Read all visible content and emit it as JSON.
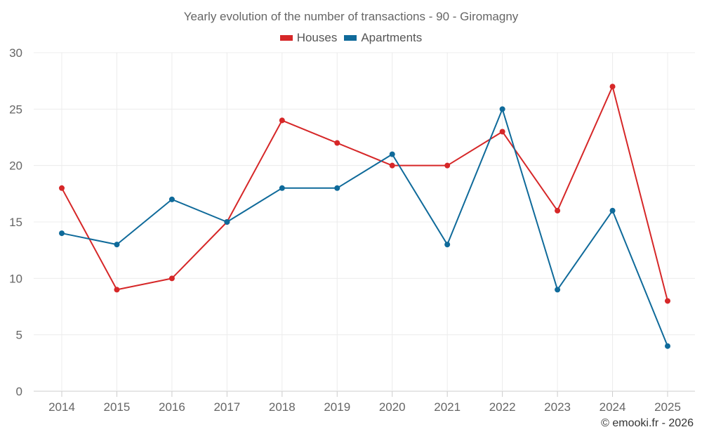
{
  "chart_data": {
    "type": "line",
    "title": "Yearly evolution of the number of transactions - 90 - Giromagny",
    "categories": [
      "2014",
      "2015",
      "2016",
      "2017",
      "2018",
      "2019",
      "2020",
      "2021",
      "2022",
      "2023",
      "2024",
      "2025"
    ],
    "series": [
      {
        "name": "Houses",
        "color": "#d62728",
        "values": [
          18,
          9,
          10,
          15,
          24,
          22,
          20,
          20,
          23,
          16,
          27,
          8
        ]
      },
      {
        "name": "Apartments",
        "color": "#0f6a9a",
        "values": [
          14,
          13,
          17,
          15,
          18,
          18,
          21,
          13,
          25,
          9,
          16,
          4
        ]
      }
    ],
    "ylim": [
      0,
      30
    ],
    "yticks": [
      "0",
      "5",
      "10",
      "15",
      "20",
      "25",
      "30"
    ],
    "grid": true,
    "legend": "top-center"
  },
  "credit": "© emooki.fr - 2026"
}
